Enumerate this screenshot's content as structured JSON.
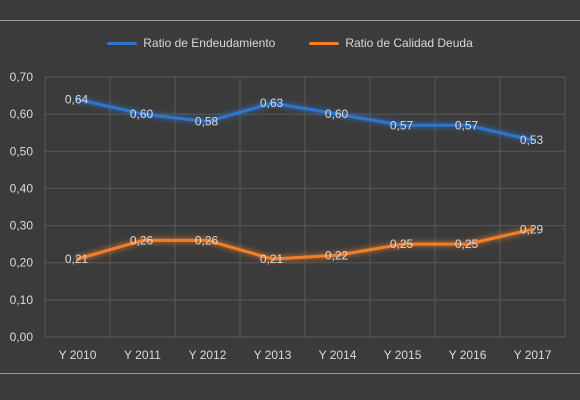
{
  "chart_data": {
    "type": "line",
    "categories": [
      "Y 2010",
      "Y 2011",
      "Y 2012",
      "Y 2013",
      "Y 2014",
      "Y 2015",
      "Y 2016",
      "Y 2017"
    ],
    "series": [
      {
        "name": "Ratio de Endeudamiento",
        "color": "#2e75d0",
        "values": [
          0.64,
          0.6,
          0.58,
          0.63,
          0.6,
          0.57,
          0.57,
          0.53
        ],
        "labels": [
          "0,64",
          "0,60",
          "0,58",
          "0,63",
          "0,60",
          "0,57",
          "0,57",
          "0,53"
        ]
      },
      {
        "name": "Ratio de Calidad Deuda",
        "color": "#f07f2a",
        "values": [
          0.21,
          0.26,
          0.26,
          0.21,
          0.22,
          0.25,
          0.25,
          0.29
        ],
        "labels": [
          "0,21",
          "0,26",
          "0,26",
          "0,21",
          "0,22",
          "0,25",
          "0,25",
          "0,29"
        ]
      }
    ],
    "ylim": [
      0,
      0.7
    ],
    "yticks": [
      0,
      0.1,
      0.2,
      0.3,
      0.4,
      0.5,
      0.6,
      0.7
    ],
    "ytick_labels": [
      "0,00",
      "0,10",
      "0,20",
      "0,30",
      "0,40",
      "0,50",
      "0,60",
      "0,70"
    ],
    "title": "",
    "xlabel": "",
    "ylabel": "",
    "grid": true,
    "legend_position": "top-center"
  }
}
